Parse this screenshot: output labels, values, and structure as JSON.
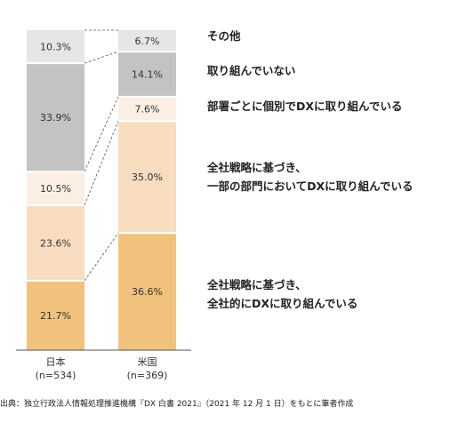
{
  "chart_data": {
    "type": "bar",
    "stacked": true,
    "normalized_percent": true,
    "categories": [
      "日本",
      "米国"
    ],
    "category_sublabels": [
      "(n=534)",
      "(n=369)"
    ],
    "series": [
      {
        "name": "全社戦略に基づき、全社的にDXに取り組んでいる",
        "legend_lines": [
          "全社戦略に基づき、",
          "全社的にDXに取り組んでいる"
        ],
        "values": [
          21.7,
          36.6
        ],
        "color": "#f0c27c"
      },
      {
        "name": "全社戦略に基づき、一部の部門においてDXに取り組んでいる",
        "legend_lines": [
          "全社戦略に基づき、",
          "一部の部門においてDXに取り組んでいる"
        ],
        "values": [
          23.6,
          35.0
        ],
        "color": "#f7dcc0"
      },
      {
        "name": "部署ごとに個別でDXに取り組んでいる",
        "legend_lines": [
          "部署ごとに個別でDXに取り組んでいる"
        ],
        "values": [
          10.5,
          7.6
        ],
        "color": "#fbeee3"
      },
      {
        "name": "取り組んでいない",
        "legend_lines": [
          "取り組んでいない"
        ],
        "values": [
          33.9,
          14.1
        ],
        "color": "#c3c3c3"
      },
      {
        "name": "その他",
        "legend_lines": [
          "その他"
        ],
        "values": [
          10.3,
          6.7
        ],
        "color": "#e6e6e6"
      }
    ],
    "value_format": "{v}%",
    "connector_lines": "dashed",
    "legend_position": "right",
    "grid": false
  },
  "source_note": "出典：独立行政法人情報処理推進機構『DX 白書 2021』（2021 年 12 月 1 日）をもとに筆者作成"
}
